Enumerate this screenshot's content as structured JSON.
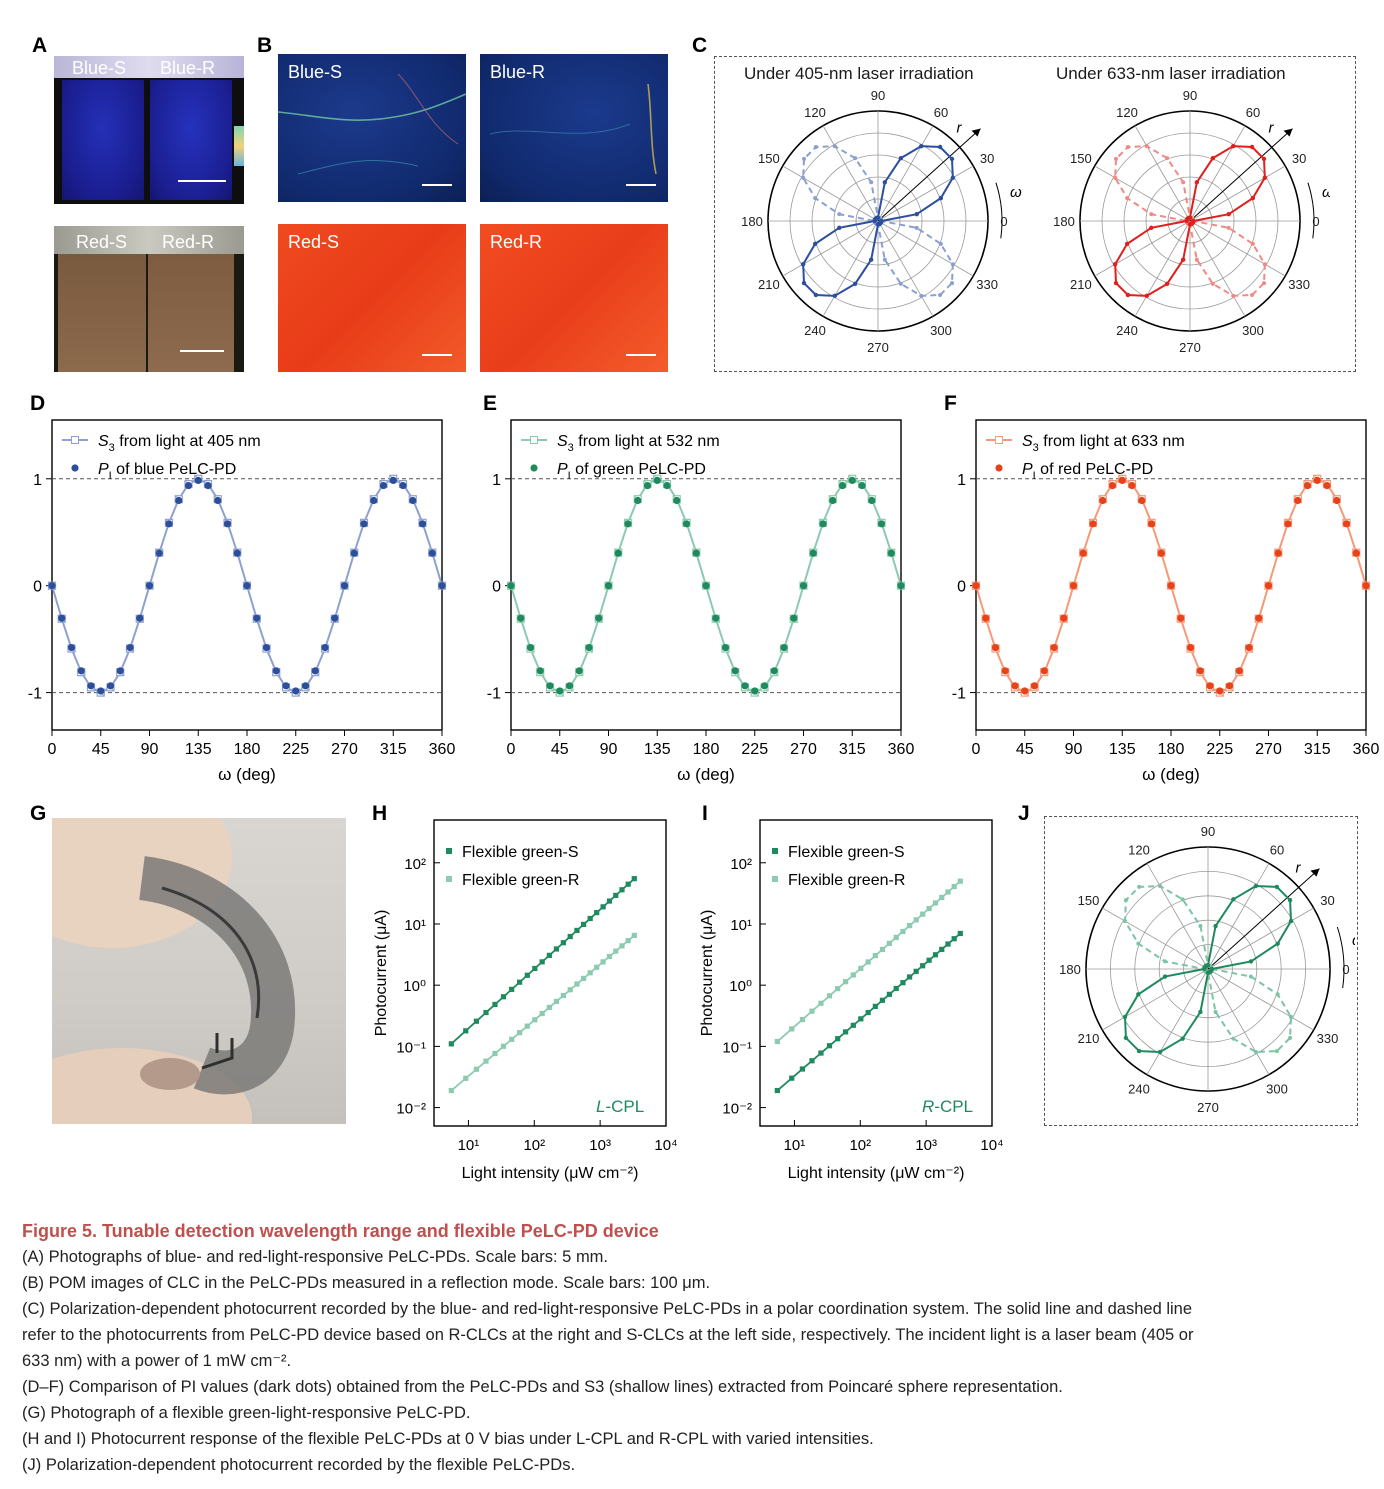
{
  "panel_labels": {
    "A": "A",
    "B": "B",
    "C": "C",
    "D": "D",
    "E": "E",
    "F": "F",
    "G": "G",
    "H": "H",
    "I": "I",
    "J": "J"
  },
  "panelA": {
    "blue_s": "Blue-S",
    "blue_r": "Blue-R",
    "red_s": "Red-S",
    "red_r": "Red-R"
  },
  "panelB": {
    "blue_s": "Blue-S",
    "blue_r": "Blue-R",
    "red_s": "Red-S",
    "red_r": "Red-R"
  },
  "panelC": {
    "title_left": "Under 405-nm laser irradiation",
    "title_right": "Under 633-nm laser irradiation",
    "angle_labels": [
      "0",
      "30",
      "60",
      "90",
      "120",
      "150",
      "180",
      "210",
      "240",
      "270",
      "300",
      "330"
    ],
    "r_label": "r",
    "omega_label": "ω",
    "colors": {
      "blue": "#2c4f9e",
      "blue_light": "#8aa0d0",
      "red": "#e0201c",
      "red_light": "#f08a85"
    }
  },
  "panelJ": {
    "angle_labels": [
      "0",
      "30",
      "60",
      "90",
      "120",
      "150",
      "180",
      "210",
      "240",
      "270",
      "300",
      "330"
    ],
    "r_label": "r",
    "omega_label": "ω",
    "colors": {
      "dark": "#1e8a5e",
      "light": "#7cc4a3"
    }
  },
  "chart_data": [
    {
      "id": "D",
      "type": "line",
      "xlabel": "ω (deg)",
      "x_ticks": [
        "0",
        "45",
        "90",
        "135",
        "180",
        "225",
        "270",
        "315",
        "360"
      ],
      "y_ticks": [
        "-1",
        "0",
        "1"
      ],
      "xlim": [
        0,
        360
      ],
      "ylim": [
        -1.35,
        1.55
      ],
      "series": [
        {
          "name": "S3 from light at 405 nm",
          "label_sym": "S",
          "label_sub": "3",
          "label_rest": " from light at 405 nm",
          "color": "#8fa1cf",
          "marker": "crossed-square"
        },
        {
          "name": "PI of blue PeLC-PD",
          "label_sym": "P",
          "label_sub": "I",
          "label_rest": " of blue PeLC-PD",
          "color": "#2d4f9b",
          "marker": "dot"
        }
      ],
      "function": "S3 = sin(2ω - 180°)",
      "x_points": [
        0,
        9,
        18,
        27,
        36,
        45,
        54,
        63,
        72,
        81,
        90,
        99,
        108,
        117,
        126,
        135,
        144,
        153,
        162,
        171,
        180,
        189,
        198,
        207,
        216,
        225,
        234,
        243,
        252,
        261,
        270,
        279,
        288,
        297,
        306,
        315,
        324,
        333,
        342,
        351,
        360
      ]
    },
    {
      "id": "E",
      "type": "line",
      "xlabel": "ω (deg)",
      "x_ticks": [
        "0",
        "45",
        "90",
        "135",
        "180",
        "225",
        "270",
        "315",
        "360"
      ],
      "y_ticks": [
        "-1",
        "0",
        "1"
      ],
      "xlim": [
        0,
        360
      ],
      "ylim": [
        -1.35,
        1.55
      ],
      "series": [
        {
          "name": "S3 from light at 532 nm",
          "label_sym": "S",
          "label_sub": "3",
          "label_rest": " from light at 532 nm",
          "color": "#8ccab0",
          "marker": "crossed-square"
        },
        {
          "name": "PI of green PeLC-PD",
          "label_sym": "P",
          "label_sub": "I",
          "label_rest": " of green PeLC-PD",
          "color": "#1e8a5e",
          "marker": "dot"
        }
      ],
      "function": "S3 = sin(2ω - 180°)",
      "x_points": [
        0,
        9,
        18,
        27,
        36,
        45,
        54,
        63,
        72,
        81,
        90,
        99,
        108,
        117,
        126,
        135,
        144,
        153,
        162,
        171,
        180,
        189,
        198,
        207,
        216,
        225,
        234,
        243,
        252,
        261,
        270,
        279,
        288,
        297,
        306,
        315,
        324,
        333,
        342,
        351,
        360
      ]
    },
    {
      "id": "F",
      "type": "line",
      "xlabel": "ω (deg)",
      "x_ticks": [
        "0",
        "45",
        "90",
        "135",
        "180",
        "225",
        "270",
        "315",
        "360"
      ],
      "y_ticks": [
        "-1",
        "0",
        "1"
      ],
      "xlim": [
        0,
        360
      ],
      "ylim": [
        -1.35,
        1.55
      ],
      "series": [
        {
          "name": "S3 from light at 633 nm",
          "label_sym": "S",
          "label_sub": "3",
          "label_rest": " from light at 633 nm",
          "color": "#f49a78",
          "marker": "crossed-square"
        },
        {
          "name": "PI of red PeLC-PD",
          "label_sym": "P",
          "label_sub": "I",
          "label_rest": " of red PeLC-PD",
          "color": "#e8421a",
          "marker": "dot"
        }
      ],
      "function": "S3 = sin(2ω - 180°)",
      "x_points": [
        0,
        9,
        18,
        27,
        36,
        45,
        54,
        63,
        72,
        81,
        90,
        99,
        108,
        117,
        126,
        135,
        144,
        153,
        162,
        171,
        180,
        189,
        198,
        207,
        216,
        225,
        234,
        243,
        252,
        261,
        270,
        279,
        288,
        297,
        306,
        315,
        324,
        333,
        342,
        351,
        360
      ]
    },
    {
      "id": "H",
      "type": "scatter",
      "xlabel": "Light intensity (μW cm⁻²)",
      "ylabel": "Photocurrent (μA)",
      "xscale": "log",
      "yscale": "log",
      "xlim": [
        3,
        10000
      ],
      "ylim": [
        0.005,
        500
      ],
      "x_ticks": [
        "10¹",
        "10²",
        "10³",
        "10⁴"
      ],
      "y_ticks": [
        "10⁻²",
        "10⁻¹",
        "10⁰",
        "10¹",
        "10²"
      ],
      "annotation": "L-CPL",
      "series": [
        {
          "name": "Flexible green-S",
          "color": "#1e8a5e",
          "endpoints": [
            [
              5.5,
              0.11
            ],
            [
              3300,
              55
            ]
          ]
        },
        {
          "name": "Flexible green-R",
          "color": "#8dcbb0",
          "endpoints": [
            [
              5.5,
              0.019
            ],
            [
              3300,
              6.5
            ]
          ]
        }
      ]
    },
    {
      "id": "I",
      "type": "scatter",
      "xlabel": "Light intensity (μW cm⁻²)",
      "ylabel": "Photocurrent (μA)",
      "xscale": "log",
      "yscale": "log",
      "xlim": [
        3,
        10000
      ],
      "ylim": [
        0.005,
        500
      ],
      "x_ticks": [
        "10¹",
        "10²",
        "10³",
        "10⁴"
      ],
      "y_ticks": [
        "10⁻²",
        "10⁻¹",
        "10⁰",
        "10¹",
        "10²"
      ],
      "annotation": "R-CPL",
      "series": [
        {
          "name": "Flexible green-S",
          "color": "#1e8a5e",
          "endpoints": [
            [
              5.5,
              0.019
            ],
            [
              3300,
              7
            ]
          ]
        },
        {
          "name": "Flexible green-R",
          "color": "#8dcbb0",
          "endpoints": [
            [
              5.5,
              0.12
            ],
            [
              3300,
              50
            ]
          ]
        }
      ]
    }
  ],
  "caption": {
    "title": "Figure 5.  Tunable detection wavelength range and flexible PeLC-PD device",
    "line_a": "(A) Photographs of blue- and red-light-responsive PeLC-PDs. Scale bars: 5 mm.",
    "line_b": "(B) POM images of CLC in the PeLC-PDs measured in a reflection mode. Scale bars: 100 μm.",
    "line_c1": "(C) Polarization-dependent photocurrent recorded by the blue- and red-light-responsive PeLC-PDs in a polar coordination system. The solid line and dashed line",
    "line_c2": "refer to the photocurrents from PeLC-PD device based on R-CLCs at the right and S-CLCs at the left side, respectively. The incident light is a laser beam (405 or",
    "line_c3": "633 nm) with a power of 1 mW cm⁻².",
    "line_df": "(D–F) Comparison of PI values (dark dots) obtained from the PeLC-PDs and S3 (shallow lines) extracted from Poincaré sphere representation.",
    "line_g": "(G) Photograph of a flexible green-light-responsive PeLC-PD.",
    "line_hi": "(H and I) Photocurrent response of the flexible PeLC-PDs at 0 V bias under L-CPL and R-CPL with varied intensities.",
    "line_j": "(J) Polarization-dependent photocurrent recorded by the flexible PeLC-PDs."
  }
}
